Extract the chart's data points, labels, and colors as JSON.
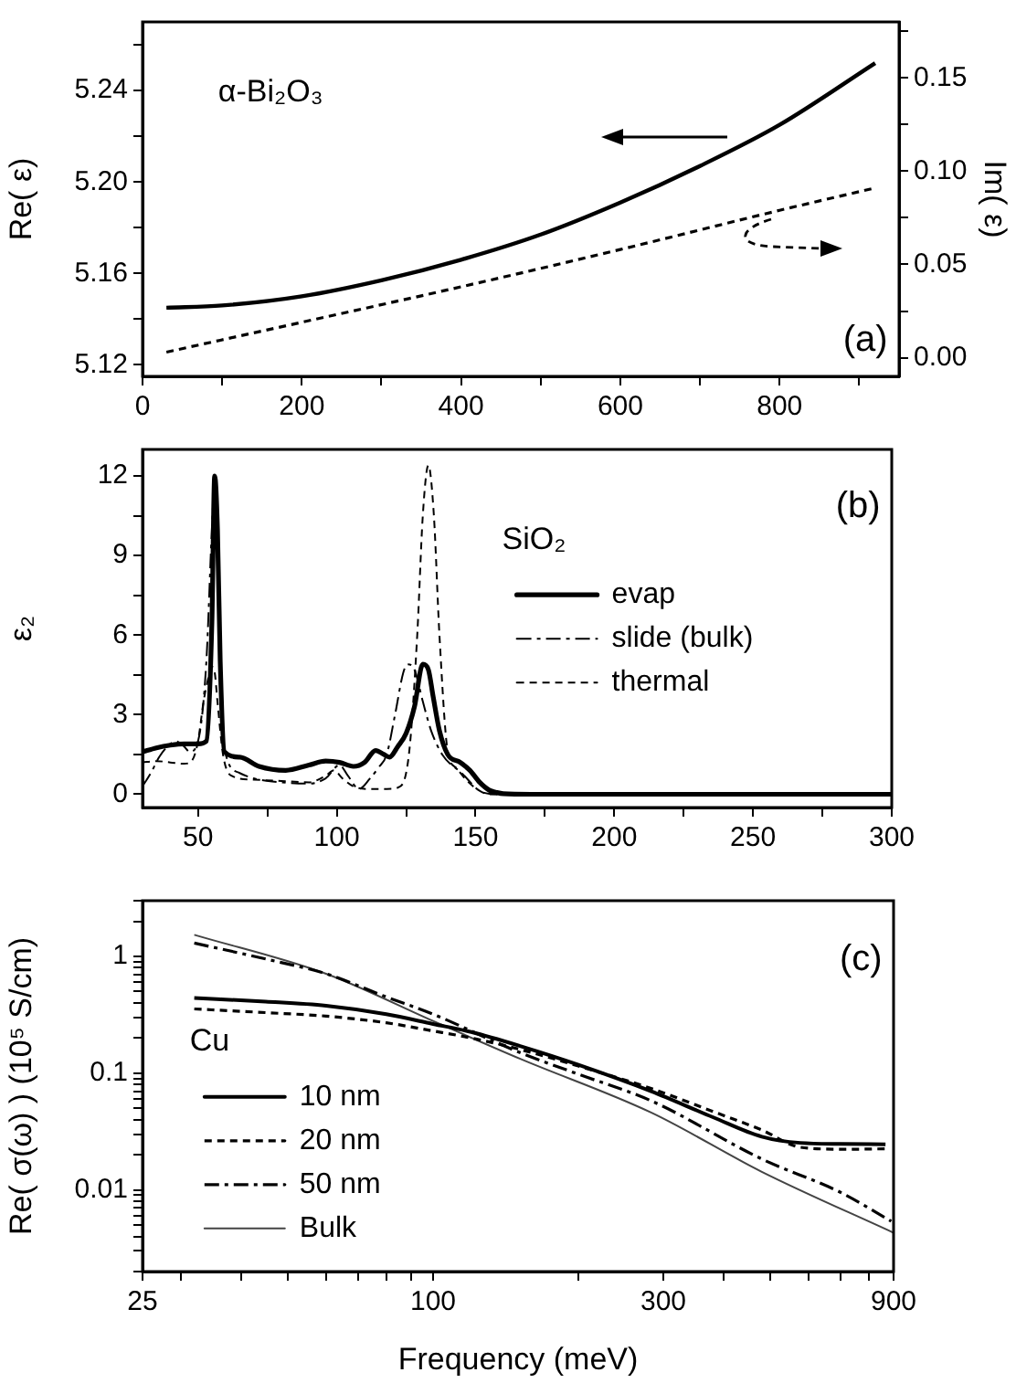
{
  "chart_data": [
    {
      "type": "line",
      "ylabel": "Re( ε)",
      "y2label": "Im( ε)",
      "annotations": [
        "α-Bi₂O₃",
        "(a)"
      ],
      "marker": "none",
      "legend": false,
      "xlim": [
        0,
        950
      ],
      "xticks": [
        0,
        {
          "value": 100,
          "label": null
        },
        200,
        {
          "value": 300,
          "label": null
        },
        400,
        {
          "value": 500,
          "label": null
        },
        600,
        {
          "value": 700,
          "label": null
        },
        800,
        {
          "value": 900,
          "label": null
        }
      ],
      "ylim": [
        5.115,
        5.27
      ],
      "yticks": [
        {
          "value": 5.12,
          "label": "5.12"
        },
        {
          "value": 5.14,
          "label": null
        },
        {
          "value": 5.16,
          "label": "5.16"
        },
        {
          "value": 5.18,
          "label": null
        },
        {
          "value": 5.2,
          "label": "5.20"
        },
        {
          "value": 5.22,
          "label": null
        },
        {
          "value": 5.24,
          "label": "5.24"
        },
        {
          "value": 5.26,
          "label": null
        }
      ],
      "y2lim": [
        -0.01,
        0.18
      ],
      "y2ticks": [
        {
          "value": 0,
          "label": "0.00"
        },
        {
          "value": 0.025,
          "label": null
        },
        {
          "value": 0.05,
          "label": "0.05"
        },
        {
          "value": 0.075,
          "label": null
        },
        {
          "value": 0.1,
          "label": "0.10"
        },
        {
          "value": 0.125,
          "label": null
        },
        {
          "value": 0.15,
          "label": "0.15"
        },
        {
          "value": 0.175,
          "label": null
        }
      ],
      "series": [
        {
          "color": "#000000",
          "line_style": "solid",
          "x": [
            30,
            100,
            200,
            300,
            400,
            500,
            600,
            700,
            800,
            920
          ],
          "values": [
            5.145,
            5.146,
            5.15,
            5.157,
            5.166,
            5.177,
            5.191,
            5.207,
            5.225,
            5.252
          ]
        },
        {
          "color": "#000000",
          "line_style": "dashed",
          "axis": "y2",
          "x": [
            30,
            200,
            400,
            600,
            800,
            920
          ],
          "values": [
            0.003,
            0.019,
            0.038,
            0.058,
            0.079,
            0.091
          ]
        }
      ]
    },
    {
      "type": "line",
      "ylabel": "ε₂",
      "legend_title": "SiO₂",
      "legend": "right",
      "annotations": [
        "(b)"
      ],
      "marker": "none",
      "xlim": [
        30,
        300
      ],
      "xticks": [
        50,
        {
          "value": 75,
          "label": null
        },
        100,
        {
          "value": 125,
          "label": null
        },
        150,
        {
          "value": 175,
          "label": null
        },
        200,
        {
          "value": 225,
          "label": null
        },
        250,
        {
          "value": 275,
          "label": null
        },
        300
      ],
      "ylim": [
        -0.5,
        13
      ],
      "yticks": [
        0,
        {
          "value": 1.5,
          "label": null
        },
        3,
        {
          "value": 4.5,
          "label": null
        },
        6,
        {
          "value": 7.5,
          "label": null
        },
        9,
        {
          "value": 10.5,
          "label": null
        },
        12
      ],
      "series": [
        {
          "name": "evap",
          "color": "#000000",
          "line_style": "solid",
          "x": [
            30,
            35,
            40,
            45,
            50,
            53,
            55,
            56,
            57,
            58,
            59.5,
            65,
            72,
            81.6,
            90,
            96,
            101,
            106,
            110,
            114,
            117,
            119,
            122,
            125,
            128,
            131,
            133,
            134.7,
            137,
            140,
            144.5,
            148,
            151.5,
            155,
            157.5,
            160,
            170,
            200,
            250,
            300
          ],
          "values": [
            1.6,
            1.75,
            1.85,
            1.9,
            1.9,
            2.0,
            6.5,
            12,
            10,
            5,
            1.6,
            1.4,
            1.05,
            0.9,
            1.1,
            1.25,
            1.2,
            1.05,
            1.2,
            1.65,
            1.5,
            1.4,
            1.8,
            2.3,
            3.3,
            4.9,
            4.7,
            3.7,
            2.4,
            1.5,
            1.2,
            0.9,
            0.45,
            0.15,
            0.07,
            0.02,
            0,
            0,
            0,
            0
          ]
        },
        {
          "name": "slide (bulk)",
          "color": "#000000",
          "line_style": "dashdot",
          "x": [
            30,
            33,
            36,
            39,
            42,
            45,
            47,
            50,
            53,
            55,
            56,
            57,
            58,
            60,
            65,
            70,
            80,
            90,
            96,
            101,
            104,
            108,
            112,
            115,
            118,
            121,
            124,
            125.6,
            128,
            131,
            134,
            138,
            145,
            152,
            158,
            170,
            200,
            250,
            300
          ],
          "values": [
            0.3,
            0.8,
            1.4,
            1.8,
            2.0,
            1.8,
            1.6,
            2.0,
            5,
            10,
            11.8,
            9,
            4,
            1.5,
            0.8,
            0.6,
            0.45,
            0.4,
            0.6,
            1.1,
            0.7,
            0.2,
            0.6,
            1.0,
            1.5,
            3.0,
            4.6,
            4.9,
            4.7,
            3.5,
            2.4,
            1.5,
            0.8,
            0.1,
            0,
            0,
            0,
            0,
            0
          ]
        },
        {
          "name": "thermal",
          "color": "#000000",
          "line_style": "dashed",
          "x": [
            30,
            35,
            40,
            45,
            48,
            50,
            52,
            54,
            55,
            56,
            57,
            59,
            62,
            70,
            80,
            90,
            96,
            99,
            102,
            107,
            112,
            118,
            122,
            126,
            129,
            131,
            133,
            135,
            137,
            140,
            143,
            147,
            152,
            155,
            170,
            200,
            250,
            300
          ],
          "values": [
            1.2,
            1.25,
            1.2,
            1.15,
            1.3,
            2,
            3.5,
            4.5,
            4.8,
            4.6,
            3.5,
            1.5,
            0.7,
            0.55,
            0.5,
            0.45,
            0.7,
            0.9,
            0.6,
            0.25,
            0.2,
            0.2,
            0.25,
            1.5,
            6,
            10.5,
            12.4,
            10.5,
            6,
            1.6,
            1.0,
            0.5,
            0.1,
            0,
            0,
            0,
            0,
            0
          ]
        }
      ]
    },
    {
      "type": "line",
      "xlabel": "Frequency (meV)",
      "ylabel": "Re( σ(ω) ) (10⁵ S/cm)",
      "legend_title": "Cu",
      "legend": "left",
      "annotations": [
        "(c)"
      ],
      "marker": "none",
      "log": "xy",
      "xlim": [
        25,
        900
      ],
      "xticks": [
        25,
        {
          "value": 30,
          "label": null
        },
        {
          "value": 40,
          "label": null
        },
        {
          "value": 50,
          "label": null
        },
        {
          "value": 60,
          "label": null
        },
        {
          "value": 70,
          "label": null
        },
        {
          "value": 80,
          "label": null
        },
        {
          "value": 90,
          "label": null
        },
        100,
        {
          "value": 200,
          "label": null
        },
        300,
        {
          "value": 400,
          "label": null
        },
        {
          "value": 500,
          "label": null
        },
        {
          "value": 600,
          "label": null
        },
        {
          "value": 700,
          "label": null
        },
        {
          "value": 800,
          "label": null
        },
        900
      ],
      "ylim": [
        0.002,
        3
      ],
      "yticks": [
        {
          "value": 0.002,
          "label": null
        },
        {
          "value": 0.003,
          "label": null
        },
        {
          "value": 0.004,
          "label": null
        },
        {
          "value": 0.005,
          "label": null
        },
        {
          "value": 0.006,
          "label": null
        },
        {
          "value": 0.007,
          "label": null
        },
        {
          "value": 0.008,
          "label": null
        },
        {
          "value": 0.009,
          "label": null
        },
        0.01,
        {
          "value": 0.02,
          "label": null
        },
        {
          "value": 0.03,
          "label": null
        },
        {
          "value": 0.04,
          "label": null
        },
        {
          "value": 0.05,
          "label": null
        },
        {
          "value": 0.06,
          "label": null
        },
        {
          "value": 0.07,
          "label": null
        },
        {
          "value": 0.08,
          "label": null
        },
        {
          "value": 0.09,
          "label": null
        },
        0.1,
        {
          "value": 0.2,
          "label": null
        },
        {
          "value": 0.3,
          "label": null
        },
        {
          "value": 0.4,
          "label": null
        },
        {
          "value": 0.5,
          "label": null
        },
        {
          "value": 0.6,
          "label": null
        },
        {
          "value": 0.7,
          "label": null
        },
        {
          "value": 0.8,
          "label": null
        },
        {
          "value": 0.9,
          "label": null
        },
        1,
        {
          "value": 2,
          "label": null
        },
        {
          "value": 3,
          "label": null
        }
      ],
      "series": [
        {
          "name": "10 nm",
          "color": "#000000",
          "line_style": "solid",
          "x": [
            32,
            45,
            60,
            80,
            100,
            120,
            152,
            200,
            283,
            380,
            480,
            577,
            700,
            866
          ],
          "values": [
            0.44,
            0.41,
            0.378,
            0.32,
            0.264,
            0.225,
            0.17,
            0.118,
            0.07,
            0.042,
            0.0286,
            0.0253,
            0.0248,
            0.0246
          ]
        },
        {
          "name": "20 nm",
          "color": "#000000",
          "line_style": "dashed",
          "x": [
            32,
            45,
            60,
            80,
            100,
            120,
            152,
            200,
            283,
            380,
            480,
            577,
            717,
            866
          ],
          "values": [
            0.355,
            0.33,
            0.308,
            0.27,
            0.23,
            0.2,
            0.159,
            0.115,
            0.074,
            0.047,
            0.0326,
            0.0232,
            0.0223,
            0.0225
          ]
        },
        {
          "name": "50 nm",
          "color": "#000000",
          "line_style": "dashdot",
          "x": [
            32,
            45,
            60,
            80,
            100,
            152,
            200,
            283,
            480,
            700,
            890
          ],
          "values": [
            1.3,
            0.95,
            0.71,
            0.45,
            0.32,
            0.149,
            0.098,
            0.058,
            0.0184,
            0.0095,
            0.0054
          ]
        },
        {
          "name": "Bulk",
          "color": "#444444",
          "line_style": "solid",
          "x": [
            32,
            60,
            100,
            152,
            283,
            480,
            900
          ],
          "values": [
            1.53,
            0.71,
            0.28,
            0.132,
            0.046,
            0.0143,
            0.0043
          ]
        }
      ]
    }
  ]
}
